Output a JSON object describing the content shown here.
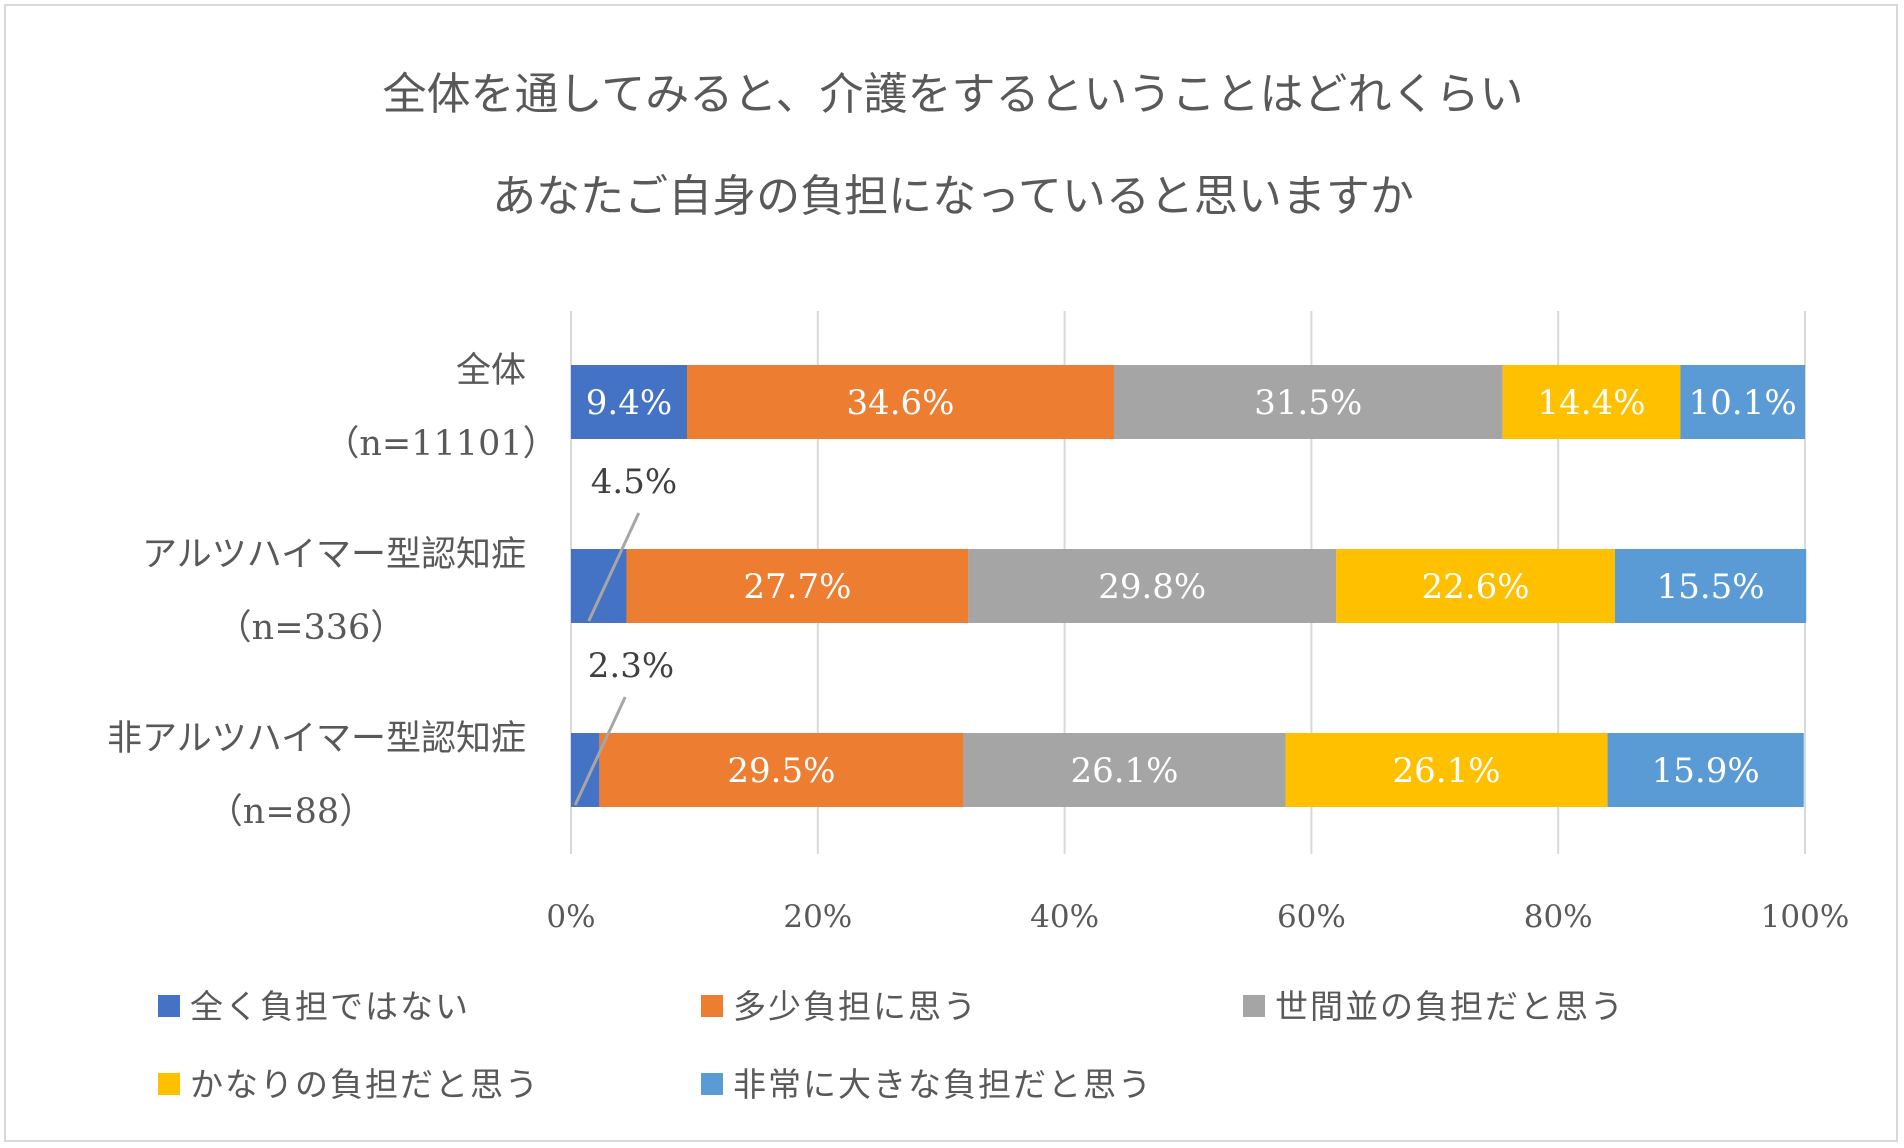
{
  "chart_data": {
    "type": "bar",
    "orientation": "horizontal",
    "stacked": "percent",
    "title": "全体を通してみると、介護をするということはどれくらい",
    "subtitle": "あなたご自身の負担になっていると思いますか",
    "categories": [
      {
        "name": "全体",
        "n": "（n=11101）"
      },
      {
        "name": "アルツハイマー型認知症",
        "n": "（n=336）"
      },
      {
        "name": "非アルツハイマー型認知症",
        "n": "（n=88）"
      }
    ],
    "series": [
      {
        "name": "全く負担ではない",
        "color": "#4472c4",
        "values": [
          9.4,
          4.5,
          2.3
        ],
        "labels": [
          "9.4%",
          "4.5%",
          "2.3%"
        ],
        "label_color": "#ffffff"
      },
      {
        "name": "多少負担に思う",
        "color": "#ed7d31",
        "values": [
          34.6,
          27.7,
          29.5
        ],
        "labels": [
          "34.6%",
          "27.7%",
          "29.5%"
        ],
        "label_color": "#ffffff"
      },
      {
        "name": "世間並の負担だと思う",
        "color": "#a5a5a5",
        "values": [
          31.5,
          29.8,
          26.1
        ],
        "labels": [
          "31.5%",
          "29.8%",
          "26.1%"
        ],
        "label_color": "#ffffff"
      },
      {
        "name": "かなりの負担だと思う",
        "color": "#ffc000",
        "values": [
          14.4,
          22.6,
          26.1
        ],
        "labels": [
          "14.4%",
          "22.6%",
          "26.1%"
        ],
        "label_color": "#ffffff"
      },
      {
        "name": "非常に大きな負担だと思う",
        "color": "#5b9bd5",
        "values": [
          10.1,
          15.5,
          15.9
        ],
        "labels": [
          "10.1%",
          "15.5%",
          "15.9%"
        ],
        "label_color": "#ffffff"
      }
    ],
    "x_ticks": [
      "0%",
      "20%",
      "40%",
      "60%",
      "80%",
      "100%"
    ],
    "x_range": [
      0,
      100
    ],
    "grid": true,
    "legend_position": "bottom"
  }
}
